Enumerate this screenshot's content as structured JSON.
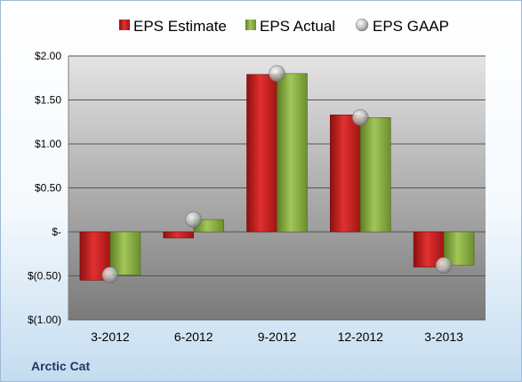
{
  "company": "Arctic Cat",
  "colors": {
    "estimate": "#c41e1e",
    "actual": "#84a83c",
    "gaap": "#b8b8b8",
    "plot_top": "#e0e0e0",
    "plot_bottom": "#808080",
    "grid": "#555555"
  },
  "chart_data": {
    "type": "bar",
    "categories": [
      "3-2012",
      "6-2012",
      "9-2012",
      "12-2012",
      "3-2013"
    ],
    "series": [
      {
        "name": "EPS Estimate",
        "values": [
          -0.55,
          -0.07,
          1.79,
          1.33,
          -0.4
        ]
      },
      {
        "name": "EPS Actual",
        "values": [
          -0.49,
          0.14,
          1.8,
          1.3,
          -0.38
        ]
      },
      {
        "name": "EPS GAAP",
        "type": "scatter",
        "values": [
          -0.49,
          0.14,
          1.8,
          1.3,
          -0.38
        ]
      }
    ],
    "ylim": [
      -1.0,
      2.0
    ],
    "yticks": [
      2.0,
      1.5,
      1.0,
      0.5,
      0,
      -0.5,
      -1.0
    ],
    "ytick_labels": [
      "$2.00",
      "$1.50",
      "$1.00",
      "$0.50",
      "$-",
      "$(0.50)",
      "$(1.00)"
    ],
    "grid": true,
    "legend_position": "top"
  }
}
